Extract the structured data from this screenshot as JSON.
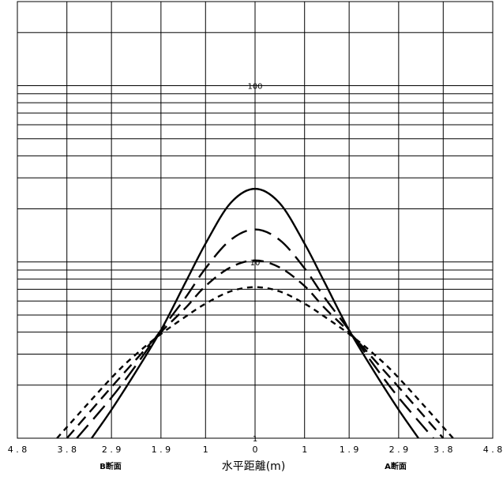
{
  "chart_data": {
    "type": "line",
    "x_scale": "linear",
    "y_scale": "log",
    "xlim": [
      -4.8,
      4.8
    ],
    "ylim": [
      1,
      300
    ],
    "x_tick_labels": [
      "4.8",
      "3.8",
      "2.9",
      "1.9",
      "1",
      "0",
      "1",
      "1.9",
      "2.9",
      "3.8",
      "4.8"
    ],
    "x_tick_values": [
      -4.8,
      -3.8,
      -2.9,
      -1.9,
      -1,
      0,
      1,
      1.9,
      2.9,
      3.8,
      4.8
    ],
    "y_tick_labels": [
      {
        "value": 100,
        "text": "100"
      },
      {
        "value": 10,
        "text": "10"
      },
      {
        "value": 1,
        "text": "1"
      }
    ],
    "xlabel": "水平距離(m)",
    "ylabel": "",
    "sub_labels": {
      "left": "B断面",
      "right": "A断面"
    },
    "grid": true,
    "series": [
      {
        "style": "solid",
        "x": [
          -3.3,
          -2.9,
          -2.4,
          -1.9,
          -1.4,
          -1.0,
          -0.5,
          0,
          0.5,
          1.0,
          1.4,
          1.9,
          2.4,
          2.9,
          3.3
        ],
        "y": [
          1.0,
          1.45,
          2.4,
          4.1,
          7.7,
          12.7,
          21.5,
          26.0,
          21.5,
          12.7,
          7.7,
          4.1,
          2.4,
          1.45,
          1.0
        ]
      },
      {
        "style": "long-dash",
        "x": [
          -3.6,
          -2.9,
          -2.4,
          -1.9,
          -1.4,
          -1.0,
          -0.5,
          0,
          0.5,
          1.0,
          1.4,
          1.9,
          2.4,
          2.9,
          3.6
        ],
        "y": [
          1.0,
          1.7,
          2.6,
          4.1,
          6.3,
          9.2,
          13.3,
          15.3,
          13.3,
          9.2,
          6.3,
          4.1,
          2.6,
          1.7,
          1.0
        ]
      },
      {
        "style": "dash",
        "x": [
          -3.8,
          -2.9,
          -2.4,
          -1.9,
          -1.4,
          -1.0,
          -0.5,
          0,
          0.5,
          1.0,
          1.4,
          1.9,
          2.4,
          2.9,
          3.8
        ],
        "y": [
          1.0,
          1.95,
          2.8,
          4.0,
          5.5,
          7.3,
          9.3,
          10.2,
          9.3,
          7.3,
          5.5,
          4.0,
          2.8,
          1.95,
          1.0
        ]
      },
      {
        "style": "short-dash",
        "x": [
          -4.0,
          -2.9,
          -2.4,
          -1.9,
          -1.4,
          -1.0,
          -0.5,
          0,
          0.5,
          1.0,
          1.4,
          1.9,
          2.4,
          2.9,
          4.0
        ],
        "y": [
          1.0,
          2.2,
          3.0,
          3.9,
          4.9,
          5.8,
          6.8,
          7.2,
          6.8,
          5.8,
          4.9,
          3.9,
          3.0,
          2.2,
          1.0
        ]
      }
    ]
  }
}
